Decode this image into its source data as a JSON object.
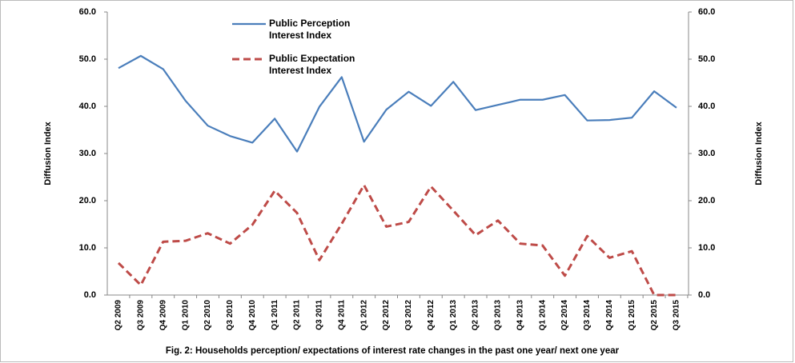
{
  "chart_data": {
    "type": "line",
    "caption": "Fig. 2:  Households  perception/ expectations of interest rate changes in the past one year/ next one year",
    "y_label": "Diffusion Index",
    "y2_label": "Diffusion Index",
    "categories": [
      "Q2 2009",
      "Q3 2009",
      "Q4 2009",
      "Q1 2010",
      "Q2 2010",
      "Q3 2010",
      "Q4 2010",
      "Q1 2011",
      "Q2 2011",
      "Q3 2011",
      "Q4 2011",
      "Q1 2012",
      "Q2 2012",
      "Q3 2012",
      "Q4 2012",
      "Q1 2013",
      "Q2 2013",
      "Q3 2013",
      "Q4 2013",
      "Q1 2014",
      "Q2 2014",
      "Q3 2014",
      "Q4 2014",
      "Q1 2015",
      "Q2 2015",
      "Q3 2015"
    ],
    "series": [
      {
        "name": "Public Perception Interest Index",
        "color": "#4a7ebb",
        "dash": false,
        "values": [
          48.1,
          50.7,
          47.9,
          41.2,
          35.9,
          33.7,
          32.3,
          37.4,
          30.4,
          39.9,
          46.2,
          32.5,
          39.3,
          43.1,
          40.1,
          45.2,
          39.2,
          40.3,
          41.4,
          41.4,
          42.4,
          37.0,
          37.1,
          37.6,
          43.2,
          39.7
        ]
      },
      {
        "name": "Public Expectation Interest Index",
        "color": "#be4b48",
        "dash": true,
        "values": [
          6.8,
          2.1,
          11.3,
          11.5,
          13.1,
          10.9,
          14.9,
          22.1,
          17.4,
          7.4,
          15.1,
          23.3,
          14.5,
          15.5,
          23.0,
          17.9,
          12.7,
          15.8,
          10.9,
          10.5,
          4.1,
          12.5,
          7.9,
          9.3,
          0.0,
          0.0
        ]
      }
    ],
    "ylim": [
      0,
      60
    ],
    "yticks": [
      {
        "value": 0,
        "label": "0.0"
      },
      {
        "value": 10,
        "label": "10.0"
      },
      {
        "value": 20,
        "label": "20.0"
      },
      {
        "value": 30,
        "label": "30.0"
      },
      {
        "value": 40,
        "label": "40.0"
      },
      {
        "value": 50,
        "label": "50.0"
      },
      {
        "value": 60,
        "label": "60.0"
      }
    ],
    "y2lim": [
      0,
      60
    ],
    "y2ticks": [
      {
        "value": 0,
        "label": "0.0"
      },
      {
        "value": 10,
        "label": "10.0"
      },
      {
        "value": 20,
        "label": "20.0"
      },
      {
        "value": 30,
        "label": "30.0"
      },
      {
        "value": 40,
        "label": "40.0"
      },
      {
        "value": 50,
        "label": "50.0"
      },
      {
        "value": 60,
        "label": "60.0"
      }
    ],
    "grid": false
  }
}
